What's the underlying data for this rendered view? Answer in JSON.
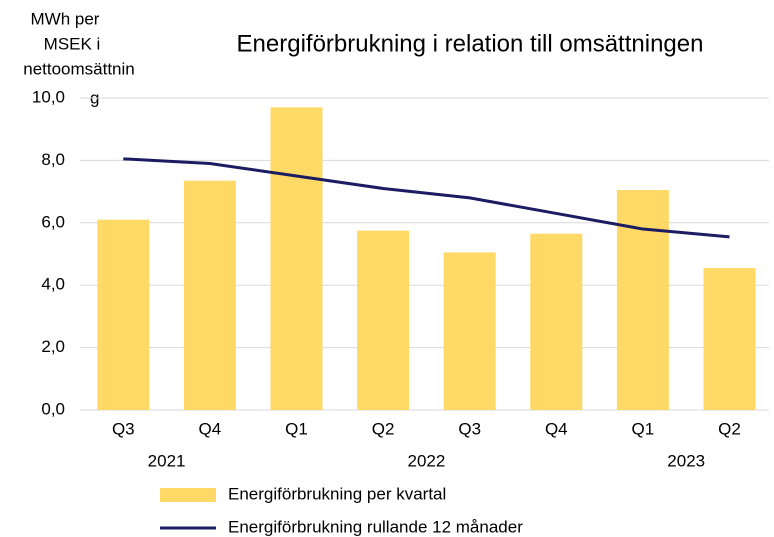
{
  "chart_data": {
    "type": "bar-line",
    "title": "Energiförbrukning i relation till omsättningen",
    "y_label_lines": [
      "MWh per",
      "MSEK i",
      "nettoomsättnin",
      "g"
    ],
    "categories": [
      "Q3",
      "Q4",
      "Q1",
      "Q2",
      "Q3",
      "Q4",
      "Q1",
      "Q2"
    ],
    "category_groups": [
      {
        "name": "2021",
        "count": 2
      },
      {
        "name": "2022",
        "count": 4
      },
      {
        "name": "2023",
        "count": 2
      }
    ],
    "series": [
      {
        "name": "Energiförbrukning per kvartal",
        "type": "bar",
        "color": "#ffd966",
        "values": [
          6.1,
          7.35,
          9.7,
          5.75,
          5.05,
          5.65,
          7.05,
          4.55
        ]
      },
      {
        "name": "Energiförbrukning rullande 12 månader",
        "type": "line",
        "color": "#1c1c63",
        "values": [
          8.05,
          7.9,
          7.5,
          7.1,
          6.8,
          6.3,
          5.8,
          5.55
        ]
      }
    ],
    "ylim": [
      0,
      10
    ],
    "yticks": [
      {
        "value": 0,
        "label": "0,0"
      },
      {
        "value": 2,
        "label": "2,0"
      },
      {
        "value": 4,
        "label": "4,0"
      },
      {
        "value": 6,
        "label": "6,0"
      },
      {
        "value": 8,
        "label": "8,0"
      },
      {
        "value": 10,
        "label": "10,0"
      }
    ],
    "grid": true,
    "legend": "bottom"
  }
}
